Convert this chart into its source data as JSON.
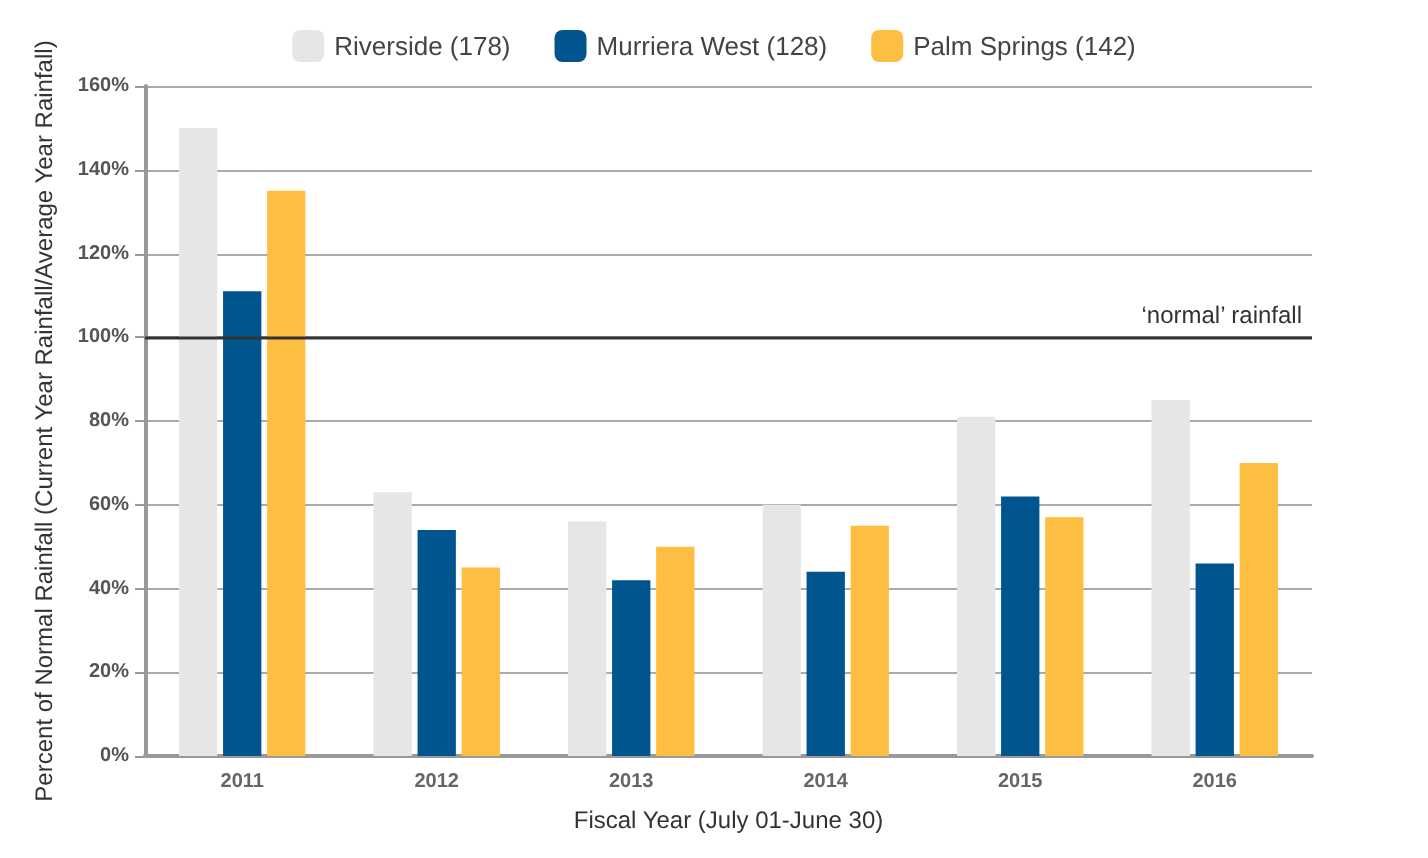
{
  "chart_data": {
    "type": "bar",
    "xlabel": "Fiscal Year (July 01-June 30)",
    "ylabel": "Percent of Normal Rainfall (Current Year Rainfall/Average Year Rainfall)",
    "categories": [
      "2011",
      "2012",
      "2013",
      "2014",
      "2015",
      "2016"
    ],
    "series": [
      {
        "name": "Riverside (178)",
        "color": "#e6e6e6",
        "values": [
          150,
          63,
          56,
          60,
          81,
          85
        ]
      },
      {
        "name": "Murriera West (128)",
        "color": "#00558f",
        "values": [
          111,
          54,
          42,
          44,
          62,
          46
        ]
      },
      {
        "name": "Palm Springs (142)",
        "color": "#fdbe42",
        "values": [
          135,
          45,
          50,
          55,
          57,
          70
        ]
      }
    ],
    "ylim": [
      0,
      160
    ],
    "yticks": [
      {
        "value": 0,
        "label": "0%"
      },
      {
        "value": 20,
        "label": "20%"
      },
      {
        "value": 40,
        "label": "40%"
      },
      {
        "value": 60,
        "label": "60%"
      },
      {
        "value": 80,
        "label": "80%"
      },
      {
        "value": 100,
        "label": "100%"
      },
      {
        "value": 120,
        "label": "120%"
      },
      {
        "value": 140,
        "label": "140%"
      },
      {
        "value": 160,
        "label": "160%"
      }
    ],
    "ref_lines": [
      {
        "axis": "y",
        "value": 100,
        "label": "‘normal’ rainfall",
        "color": "#333333"
      }
    ],
    "grid": "y",
    "legend": "top"
  }
}
